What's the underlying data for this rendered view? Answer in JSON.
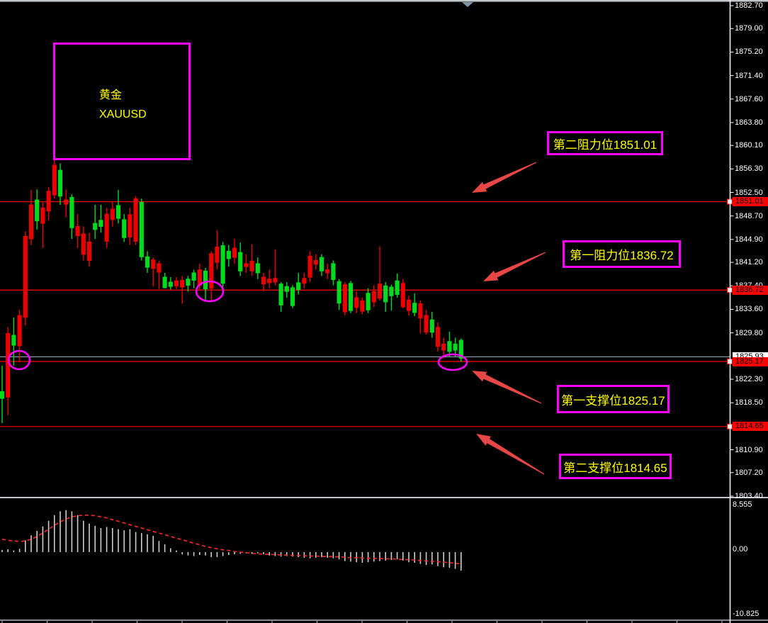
{
  "app": {
    "kind": "forex-terminal-chart",
    "symbol": "XAUUSD"
  },
  "annotations": {
    "title": {
      "line1": "黄金",
      "line2": "XAUUSD"
    },
    "resistance2": {
      "label": "第二阻力位1851.01",
      "price": 1851.01
    },
    "resistance1": {
      "label": "第一阻力位1836.72",
      "price": 1836.72
    },
    "support1": {
      "label": "第一支撑位1825.17",
      "price": 1825.17
    },
    "support2": {
      "label": "第二支撑位1814.65",
      "price": 1814.65
    }
  },
  "colors": {
    "background": "#000000",
    "bull_candle": "#00db1e",
    "bear_candle": "#ec0000",
    "level_line": "#ff0000",
    "bid_line": "#9fb4c2",
    "annotation_border": "#ff00ff",
    "annotation_text": "#ffff00",
    "arrow": "#e64646",
    "histogram_bar": "#cccccc",
    "signal_line": "#ff2828",
    "axis_text": "#ffffff",
    "frame": "#bfc6cc"
  },
  "price_axis": {
    "bid_tag": "1825.93",
    "level_tags": [
      "1851.01",
      "1836.72",
      "1825.17",
      "1814.65"
    ]
  },
  "indicator_axis": {
    "labels": [
      "8.555",
      "0.00",
      "-10.825"
    ]
  },
  "chart_data": {
    "type": "candlestick",
    "title": "黄金 XAUUSD",
    "legend_position": "none",
    "grid": false,
    "main": {
      "ylim": [
        1803.4,
        1882.7
      ],
      "y_ticks": [
        1882.7,
        1879.0,
        1875.2,
        1871.4,
        1867.6,
        1863.8,
        1860.1,
        1856.3,
        1852.5,
        1848.7,
        1844.9,
        1841.2,
        1837.4,
        1833.6,
        1829.8,
        1822.3,
        1818.5,
        1810.9,
        1807.2,
        1803.4
      ],
      "horizontal_levels": [
        1851.01,
        1836.72,
        1825.17,
        1814.65
      ],
      "current_bid": 1825.93,
      "candles_ohlc": [
        [
          1819.2,
          1824.5,
          1815.2,
          1820.3
        ],
        [
          1829.7,
          1830.7,
          1816.5,
          1819.4
        ],
        [
          1827.8,
          1832.3,
          1824.5,
          1829.4
        ],
        [
          1832.6,
          1833.5,
          1825.1,
          1827.7
        ],
        [
          1845.4,
          1846.2,
          1831.0,
          1832.3
        ],
        [
          1850.5,
          1852.9,
          1844.0,
          1845.0
        ],
        [
          1847.9,
          1853.0,
          1846.5,
          1851.3
        ],
        [
          1850.0,
          1851.0,
          1843.5,
          1847.5
        ],
        [
          1852.7,
          1853.4,
          1848.0,
          1849.5
        ],
        [
          1856.9,
          1857.7,
          1851.5,
          1852.1
        ],
        [
          1851.9,
          1857.2,
          1850.5,
          1856.1
        ],
        [
          1851.3,
          1853.0,
          1848.5,
          1850.6
        ],
        [
          1846.8,
          1852.2,
          1845.0,
          1851.7
        ],
        [
          1847.0,
          1849.0,
          1843.5,
          1845.5
        ],
        [
          1845.8,
          1847.0,
          1841.5,
          1842.5
        ],
        [
          1844.5,
          1846.0,
          1840.5,
          1841.5
        ],
        [
          1846.5,
          1850.5,
          1845.0,
          1847.5
        ],
        [
          1847.0,
          1850.5,
          1846.0,
          1848.0
        ],
        [
          1849.0,
          1850.0,
          1843.5,
          1844.6
        ],
        [
          1849.8,
          1851.0,
          1847.0,
          1848.1
        ],
        [
          1848.3,
          1852.9,
          1847.5,
          1850.4
        ],
        [
          1845.2,
          1849.0,
          1844.5,
          1848.1
        ],
        [
          1848.9,
          1850.0,
          1844.0,
          1845.3
        ],
        [
          1851.5,
          1851.9,
          1844.0,
          1844.6
        ],
        [
          1842.1,
          1851.5,
          1841.5,
          1850.9
        ],
        [
          1840.4,
          1843.0,
          1839.5,
          1842.1
        ],
        [
          1841.6,
          1842.0,
          1837.3,
          1840.2
        ],
        [
          1841.0,
          1841.5,
          1836.9,
          1839.6
        ],
        [
          1837.1,
          1839.5,
          1837.0,
          1838.8
        ],
        [
          1837.3,
          1838.8,
          1836.8,
          1838.0
        ],
        [
          1838.2,
          1838.8,
          1836.9,
          1837.4
        ],
        [
          1838.3,
          1839.0,
          1834.5,
          1837.2
        ],
        [
          1837.5,
          1839.0,
          1836.5,
          1838.5
        ],
        [
          1838.3,
          1840.0,
          1837.0,
          1839.5
        ],
        [
          1840.0,
          1841.0,
          1836.8,
          1837.5
        ],
        [
          1836.9,
          1840.3,
          1834.9,
          1839.8
        ],
        [
          1842.6,
          1843.0,
          1835.0,
          1837.0
        ],
        [
          1843.7,
          1846.4,
          1840.0,
          1841.2
        ],
        [
          1837.8,
          1844.5,
          1837.0,
          1843.9
        ],
        [
          1841.8,
          1844.0,
          1840.5,
          1843.0
        ],
        [
          1843.5,
          1845.0,
          1841.0,
          1842.0
        ],
        [
          1839.8,
          1844.4,
          1839.0,
          1842.8
        ],
        [
          1841.0,
          1842.5,
          1839.5,
          1840.5
        ],
        [
          1841.4,
          1844.1,
          1839.0,
          1839.8
        ],
        [
          1839.5,
          1842.0,
          1838.5,
          1841.0
        ],
        [
          1838.8,
          1839.5,
          1836.5,
          1837.7
        ],
        [
          1838.5,
          1840.0,
          1837.0,
          1837.9
        ],
        [
          1838.6,
          1843.3,
          1837.5,
          1838.0
        ],
        [
          1834.3,
          1838.0,
          1833.2,
          1837.7
        ],
        [
          1836.5,
          1838.0,
          1835.5,
          1837.3
        ],
        [
          1834.2,
          1837.5,
          1833.8,
          1837.1
        ],
        [
          1836.8,
          1839.5,
          1836.0,
          1837.9
        ],
        [
          1838.6,
          1839.5,
          1837.0,
          1837.8
        ],
        [
          1842.2,
          1843.0,
          1838.0,
          1838.8
        ],
        [
          1841.5,
          1842.5,
          1840.0,
          1840.9
        ],
        [
          1839.8,
          1842.5,
          1839.0,
          1842.0
        ],
        [
          1840.0,
          1841.0,
          1838.5,
          1839.5
        ],
        [
          1838.4,
          1841.5,
          1837.5,
          1841.0
        ],
        [
          1834.6,
          1838.5,
          1833.5,
          1838.1
        ],
        [
          1837.6,
          1838.0,
          1832.6,
          1833.2
        ],
        [
          1833.4,
          1838.2,
          1833.0,
          1837.8
        ],
        [
          1835.5,
          1836.5,
          1833.0,
          1833.9
        ],
        [
          1835.0,
          1835.5,
          1832.8,
          1833.3
        ],
        [
          1833.5,
          1837.0,
          1833.0,
          1836.2
        ],
        [
          1836.5,
          1837.5,
          1834.0,
          1834.8
        ],
        [
          1837.7,
          1843.8,
          1835.0,
          1835.4
        ],
        [
          1834.8,
          1838.0,
          1833.2,
          1837.4
        ],
        [
          1835.8,
          1837.6,
          1833.4,
          1837.2
        ],
        [
          1836.0,
          1839.4,
          1835.5,
          1838.2
        ],
        [
          1837.8,
          1838.5,
          1833.8,
          1834.0
        ],
        [
          1835.1,
          1835.8,
          1832.6,
          1833.4
        ],
        [
          1833.1,
          1836.2,
          1832.5,
          1834.6
        ],
        [
          1834.5,
          1835.0,
          1829.7,
          1832.2
        ],
        [
          1832.6,
          1833.5,
          1829.5,
          1829.9
        ],
        [
          1829.9,
          1833.2,
          1829.0,
          1831.9
        ],
        [
          1830.7,
          1831.5,
          1826.8,
          1827.6
        ],
        [
          1828.0,
          1829.0,
          1825.7,
          1827.0
        ],
        [
          1826.8,
          1830.0,
          1826.0,
          1828.4
        ],
        [
          1827.0,
          1829.0,
          1826.0,
          1828.0
        ],
        [
          1825.7,
          1828.9,
          1825.1,
          1828.6
        ]
      ]
    },
    "indicator": {
      "name": "macd-histogram",
      "ylim": [
        -10.825,
        8.555
      ],
      "y_ticks": [
        8.555,
        0.0,
        -10.825
      ],
      "histogram": [
        0.4,
        0.5,
        0.3,
        0.6,
        2.1,
        3.0,
        3.8,
        4.6,
        5.6,
        6.6,
        7.3,
        7.5,
        7.3,
        6.6,
        5.6,
        5.1,
        4.7,
        4.3,
        4.5,
        4.3,
        4.1,
        3.9,
        4.1,
        3.6,
        3.4,
        3.2,
        2.9,
        2.0,
        1.4,
        0.7,
        0.3,
        -0.4,
        -0.6,
        -0.7,
        -0.5,
        -0.6,
        -0.9,
        -0.9,
        -0.7,
        -0.5,
        -0.4,
        -0.3,
        -0.2,
        -0.3,
        -0.2,
        -0.4,
        -0.6,
        -0.7,
        -0.8,
        -0.7,
        -0.8,
        -0.9,
        -1.0,
        -1.1,
        -1.0,
        -0.9,
        -1.0,
        -1.1,
        -1.3,
        -1.6,
        -1.7,
        -1.8,
        -1.9,
        -1.8,
        -1.7,
        -1.6,
        -1.5,
        -1.4,
        -1.3,
        -1.5,
        -1.8,
        -1.9,
        -2.1,
        -2.3,
        -2.2,
        -2.5,
        -2.7,
        -2.8,
        -3.0,
        -3.3
      ],
      "signal": [
        2.3,
        2.1,
        2.0,
        1.9,
        2.0,
        2.3,
        2.8,
        3.4,
        4.1,
        4.8,
        5.4,
        5.9,
        6.3,
        6.5,
        6.6,
        6.6,
        6.5,
        6.3,
        6.1,
        5.8,
        5.5,
        5.2,
        4.9,
        4.6,
        4.3,
        4.0,
        3.7,
        3.4,
        3.1,
        2.8,
        2.5,
        2.2,
        1.9,
        1.6,
        1.3,
        1.0,
        0.8,
        0.6,
        0.4,
        0.3,
        0.1,
        0.0,
        -0.1,
        -0.2,
        -0.3,
        -0.35,
        -0.4,
        -0.45,
        -0.5,
        -0.55,
        -0.6,
        -0.6,
        -0.65,
        -0.7,
        -0.7,
        -0.75,
        -0.8,
        -0.8,
        -0.85,
        -0.9,
        -1.0,
        -1.0,
        -1.05,
        -1.1,
        -1.1,
        -1.15,
        -1.2,
        -1.2,
        -1.25,
        -1.3,
        -1.35,
        -1.4,
        -1.5,
        -1.6,
        -1.65,
        -1.7,
        -1.8,
        -1.9,
        -2.0,
        -2.1
      ]
    },
    "highlight_ellipses": [
      {
        "price": 1825.4,
        "candle_index": 3
      },
      {
        "price": 1836.7,
        "candle_index": 36
      },
      {
        "price": 1825.5,
        "candle_index": 78
      }
    ]
  }
}
